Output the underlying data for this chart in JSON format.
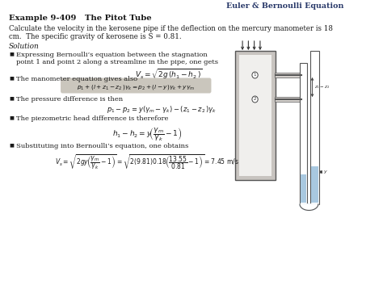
{
  "title": "Euler & Bernoulli Equation",
  "example_title": "Example 9-409   The Pitot Tube",
  "problem_line1": "Calculate the velocity in the kerosene pipe if the deflection on the mercury manometer is 18",
  "problem_line2": "cm.  The specific gravity of kerosene is S = 0.81.",
  "solution_label": "Solution",
  "bullet1": "Expressing Bernoulli’s equation between the stagnation",
  "bullet1b": "point 1 and point 2 along a streamline in the pipe, one gets",
  "bullet2": "The manometer equation gives also",
  "bullet3": "The pressure difference is then",
  "bullet4": "The piezometric head difference is therefore",
  "bullet5": "Substituting into Bernoulli’s equation, one obtains",
  "eq1": "$V_s = \\sqrt{2g\\,(h_1 - h_2\\,)}$",
  "eq2": "$p_1 + (l + z_1 - z_2\\,)\\gamma_k = p_2 + (l-y)\\gamma_k + y\\gamma_m$",
  "eq3": "$p_1 - p_2 = y(\\gamma_m - \\gamma_k) - (z_1 - z_2\\,)\\gamma_k$",
  "eq4": "$h_1 - h_2 = y\\!\\left(\\dfrac{\\gamma_m}{\\gamma_k} - 1\\right)$",
  "eq5": "$V_s = \\sqrt{2gy\\!\\left(\\dfrac{\\gamma_m}{\\gamma_k} - 1\\right)} = \\sqrt{2(9.81)0.18\\!\\left(\\dfrac{13.55}{0.81} - 1\\right)} = 7.45\\ \\mathrm{m/s}$",
  "bg_color": "#ffffff",
  "text_color": "#1a1a1a",
  "title_color": "#2a3a6a",
  "highlight_color": "#a09888"
}
